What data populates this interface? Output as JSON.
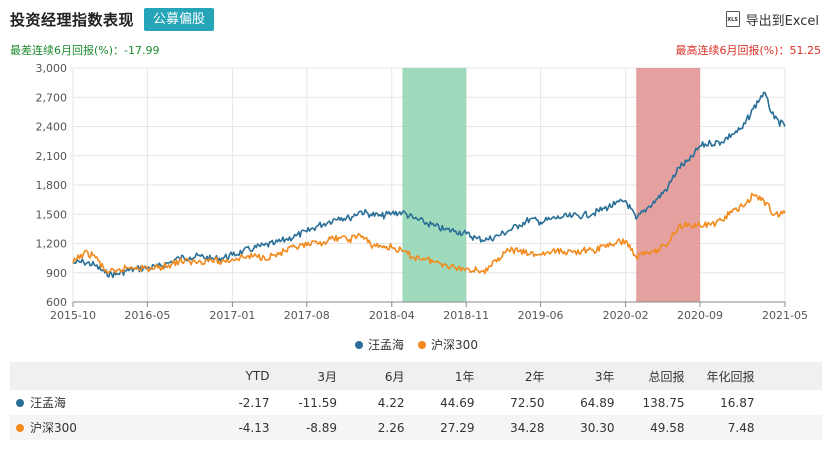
{
  "header": {
    "title": "投资经理指数表现",
    "tag": "公募偏股",
    "export_label": "导出到Excel",
    "export_icon": "xls-file-icon"
  },
  "stats": {
    "worst": "最差连续6月回报(%)：-17.99",
    "best": "最高连续6月回报(%)：51.25"
  },
  "colors": {
    "series1": "#2a6f97",
    "series2": "#f28a1e",
    "shade_green": "#8fd3b0",
    "shade_red": "#e08f8f",
    "worst_text": "#1c8a2e",
    "best_text": "#d93025"
  },
  "chart_data": {
    "type": "line",
    "title": "",
    "xlabel": "",
    "ylabel": "",
    "ylim": [
      600,
      3000
    ],
    "yticks": [
      600,
      900,
      1200,
      1500,
      1800,
      2100,
      2400,
      2700,
      3000
    ],
    "yticks_label": [
      "600",
      "900",
      "1,200",
      "1,500",
      "1,800",
      "2,100",
      "2,400",
      "2,700",
      "3,000"
    ],
    "xlim": [
      "2015-10",
      "2021-05"
    ],
    "xtick_labels": [
      "2015-10",
      "2016-05",
      "2017-01",
      "2017-08",
      "2018-04",
      "2018-11",
      "2019-06",
      "2020-02",
      "2020-09",
      "2021-05"
    ],
    "grid": true,
    "legend_position": "bottom",
    "shaded_periods": [
      {
        "start": "2018-05",
        "end": "2018-11",
        "color": "green"
      },
      {
        "start": "2020-03",
        "end": "2020-09",
        "color": "red"
      }
    ],
    "x": [
      "2015-10",
      "2015-11",
      "2015-12",
      "2016-01",
      "2016-02",
      "2016-03",
      "2016-04",
      "2016-05",
      "2016-06",
      "2016-07",
      "2016-08",
      "2016-09",
      "2016-10",
      "2016-11",
      "2016-12",
      "2017-01",
      "2017-02",
      "2017-03",
      "2017-04",
      "2017-05",
      "2017-06",
      "2017-07",
      "2017-08",
      "2017-09",
      "2017-10",
      "2017-11",
      "2017-12",
      "2018-01",
      "2018-02",
      "2018-03",
      "2018-04",
      "2018-05",
      "2018-06",
      "2018-07",
      "2018-08",
      "2018-09",
      "2018-10",
      "2018-11",
      "2018-12",
      "2019-01",
      "2019-02",
      "2019-03",
      "2019-04",
      "2019-05",
      "2019-06",
      "2019-07",
      "2019-08",
      "2019-09",
      "2019-10",
      "2019-11",
      "2019-12",
      "2020-01",
      "2020-02",
      "2020-03",
      "2020-04",
      "2020-05",
      "2020-06",
      "2020-07",
      "2020-08",
      "2020-09",
      "2020-10",
      "2020-11",
      "2020-12",
      "2021-01",
      "2021-02",
      "2021-03",
      "2021-04",
      "2021-05"
    ],
    "series": [
      {
        "name": "汪孟海",
        "values": [
          1000,
          1010,
          980,
          900,
          880,
          920,
          940,
          950,
          960,
          1000,
          1050,
          1060,
          1070,
          1040,
          1050,
          1080,
          1120,
          1150,
          1180,
          1200,
          1240,
          1280,
          1320,
          1380,
          1420,
          1470,
          1460,
          1530,
          1500,
          1480,
          1510,
          1520,
          1460,
          1420,
          1380,
          1340,
          1330,
          1300,
          1250,
          1240,
          1280,
          1330,
          1390,
          1450,
          1420,
          1450,
          1470,
          1480,
          1490,
          1510,
          1560,
          1600,
          1640,
          1450,
          1560,
          1660,
          1780,
          1980,
          2050,
          2200,
          2230,
          2240,
          2320,
          2380,
          2580,
          2750,
          2480,
          2400
        ]
      },
      {
        "name": "沪深300",
        "values": [
          1000,
          1100,
          1080,
          920,
          900,
          950,
          960,
          940,
          950,
          980,
          1020,
          1010,
          1020,
          1030,
          1010,
          1040,
          1060,
          1070,
          1060,
          1080,
          1120,
          1160,
          1180,
          1200,
          1230,
          1260,
          1240,
          1290,
          1190,
          1170,
          1160,
          1120,
          1060,
          1050,
          1010,
          990,
          950,
          940,
          930,
          920,
          1050,
          1130,
          1120,
          1090,
          1090,
          1110,
          1120,
          1110,
          1130,
          1120,
          1180,
          1200,
          1230,
          1060,
          1110,
          1140,
          1200,
          1380,
          1400,
          1380,
          1390,
          1440,
          1520,
          1580,
          1700,
          1640,
          1500,
          1510
        ]
      }
    ]
  },
  "legend": {
    "items": [
      {
        "label": "汪孟海"
      },
      {
        "label": "沪深300"
      }
    ]
  },
  "table": {
    "headers": [
      "YTD",
      "3月",
      "6月",
      "1年",
      "2年",
      "3年",
      "总回报",
      "年化回报"
    ],
    "rows": [
      {
        "name": "汪孟海",
        "values": [
          "-2.17",
          "-11.59",
          "4.22",
          "44.69",
          "72.50",
          "64.89",
          "138.75",
          "16.87"
        ]
      },
      {
        "name": "沪深300",
        "values": [
          "-4.13",
          "-8.89",
          "2.26",
          "27.29",
          "34.28",
          "30.30",
          "49.58",
          "7.48"
        ]
      }
    ]
  }
}
